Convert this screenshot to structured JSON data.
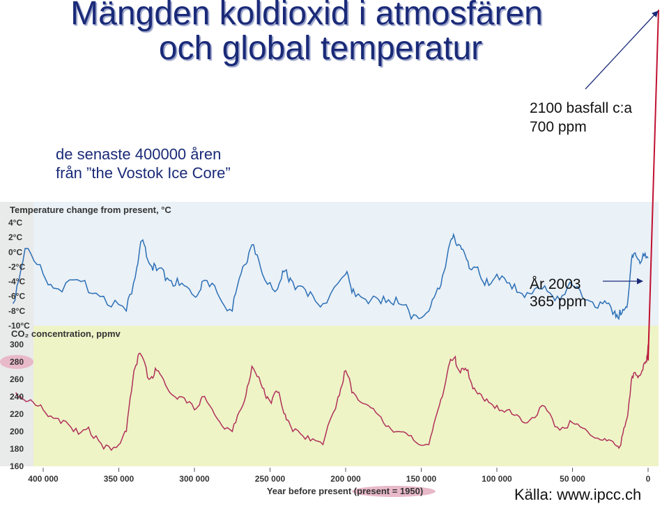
{
  "heading": {
    "line1": "Mängden koldioxid i atmosfären",
    "line2": "och global temperatur"
  },
  "subtitle": {
    "line1": "de senaste 400000 åren",
    "line2": "från ”the Vostok Ice Core”"
  },
  "annotation_2100": {
    "line1": "2100 basfall c:a",
    "line2": "700 ppm"
  },
  "annotation_2003": {
    "line1": "År 2003",
    "line2": "365 ppm"
  },
  "source": "Källa: www.ipcc.ch",
  "colors": {
    "heading": "#1a2a78",
    "temperature": "#2b6fb5",
    "co2": "#b0305a",
    "co2_bg": "#eef4c6",
    "temp_bg": "#eaf1f7"
  },
  "chart_data": [
    {
      "type": "line",
      "title": "Temperature change from present, °C",
      "xlabel": "Year before present (present = 1950)",
      "ylabel": "",
      "xlim": [
        400000,
        0
      ],
      "ylim": [
        -10,
        4
      ],
      "yticks": [
        "4°C",
        "2°C",
        "0°C",
        "-2°C",
        "-4°C",
        "-6°C",
        "-8°C",
        "-10°C"
      ],
      "series": [
        {
          "x": [
            420000,
            412000,
            400000,
            390000,
            375000,
            360000,
            345000,
            338000,
            335000,
            330000,
            325000,
            318000,
            310000,
            300000,
            295000,
            285000,
            275000,
            268000,
            262000,
            255000,
            245000,
            240000,
            235000,
            225000,
            215000,
            200000,
            195000,
            185000,
            175000,
            165000,
            155000,
            145000,
            138000,
            132000,
            128000,
            125000,
            120000,
            115000,
            108000,
            100000,
            90000,
            80000,
            70000,
            60000,
            50000,
            40000,
            30000,
            22000,
            18000,
            14000,
            11000,
            8000,
            4000,
            0
          ],
          "y": [
            -7,
            0.5,
            -3,
            -5,
            -4,
            -6,
            -8,
            -2,
            1.5,
            -1.5,
            -2.5,
            -3.5,
            -4.5,
            -6,
            -4,
            -5.5,
            -8,
            -2,
            1,
            -3,
            -5,
            -2.5,
            -4,
            -6,
            -7,
            -3,
            -5,
            -7,
            -6,
            -7,
            -8.5,
            -8,
            -5,
            0.5,
            2,
            1,
            -1,
            -2,
            -4.5,
            -3,
            -5,
            -5.5,
            -5,
            -6,
            -4.5,
            -6.5,
            -7,
            -8,
            -8.5,
            -7.5,
            -1,
            -0.5,
            -1,
            -0.8
          ]
        }
      ]
    },
    {
      "type": "line",
      "title": "CO₂ concentration, ppmv",
      "xlabel": "Year before present (present = 1950)",
      "ylabel": "",
      "xlim": [
        400000,
        0
      ],
      "ylim": [
        160,
        300
      ],
      "yticks": [
        "300",
        "280",
        "260",
        "240",
        "220",
        "200",
        "180",
        "160"
      ],
      "xticks": [
        "400 000",
        "350 000",
        "300 000",
        "250 000",
        "200 000",
        "150 000",
        "100 000",
        "50 000",
        "0"
      ],
      "series": [
        {
          "x": [
            418000,
            410000,
            400000,
            390000,
            380000,
            370000,
            360000,
            350000,
            345000,
            340000,
            336000,
            330000,
            325000,
            318000,
            310000,
            300000,
            295000,
            285000,
            275000,
            268000,
            262000,
            255000,
            250000,
            245000,
            240000,
            235000,
            225000,
            215000,
            205000,
            200000,
            195000,
            185000,
            175000,
            165000,
            155000,
            145000,
            138000,
            132000,
            128000,
            125000,
            120000,
            115000,
            108000,
            100000,
            90000,
            80000,
            70000,
            60000,
            50000,
            40000,
            30000,
            22000,
            18000,
            14000,
            11000,
            8000,
            4000,
            1000,
            0
          ],
          "y": [
            245,
            235,
            225,
            215,
            200,
            205,
            180,
            185,
            200,
            270,
            290,
            260,
            270,
            250,
            240,
            225,
            240,
            215,
            200,
            230,
            275,
            250,
            235,
            245,
            220,
            200,
            195,
            185,
            240,
            270,
            245,
            230,
            210,
            200,
            190,
            185,
            230,
            275,
            285,
            270,
            270,
            250,
            235,
            230,
            220,
            210,
            230,
            205,
            210,
            200,
            190,
            185,
            185,
            215,
            260,
            265,
            270,
            280,
            300
          ]
        }
      ]
    }
  ]
}
